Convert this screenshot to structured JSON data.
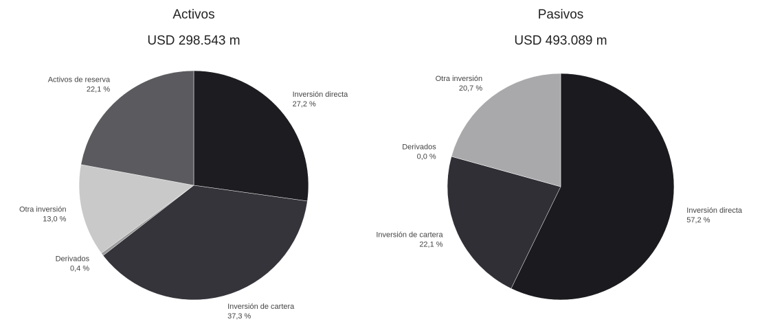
{
  "chart_data": [
    {
      "type": "pie",
      "title": "Activos",
      "subtitle": "USD 298.543 m",
      "categories": [
        "Inversión directa",
        "Inversión de cartera",
        "Derivados",
        "Otra inversión",
        "Activos de reserva"
      ],
      "values": [
        27.2,
        37.3,
        0.4,
        13.0,
        22.1
      ],
      "value_labels": [
        "27,2 %",
        "37,3 %",
        "0,4 %",
        "13,0 %",
        "22,1 %"
      ],
      "colors": [
        "#1d1d21",
        "#34343a",
        "#9a9a9a",
        "#c9c9c9",
        "#5b5b5f"
      ]
    },
    {
      "type": "pie",
      "title": "Pasivos",
      "subtitle": "USD 493.089 m",
      "categories": [
        "Inversión directa",
        "Inversión de cartera",
        "Derivados",
        "Otra inversión"
      ],
      "values": [
        57.2,
        22.1,
        0.0,
        20.7
      ],
      "value_labels": [
        "57,2 %",
        "22,1 %",
        "0,0 %",
        "20,7 %"
      ],
      "colors": [
        "#1b1b1f",
        "#2f2f35",
        "#8a8a8a",
        "#a9a9ab"
      ]
    }
  ]
}
